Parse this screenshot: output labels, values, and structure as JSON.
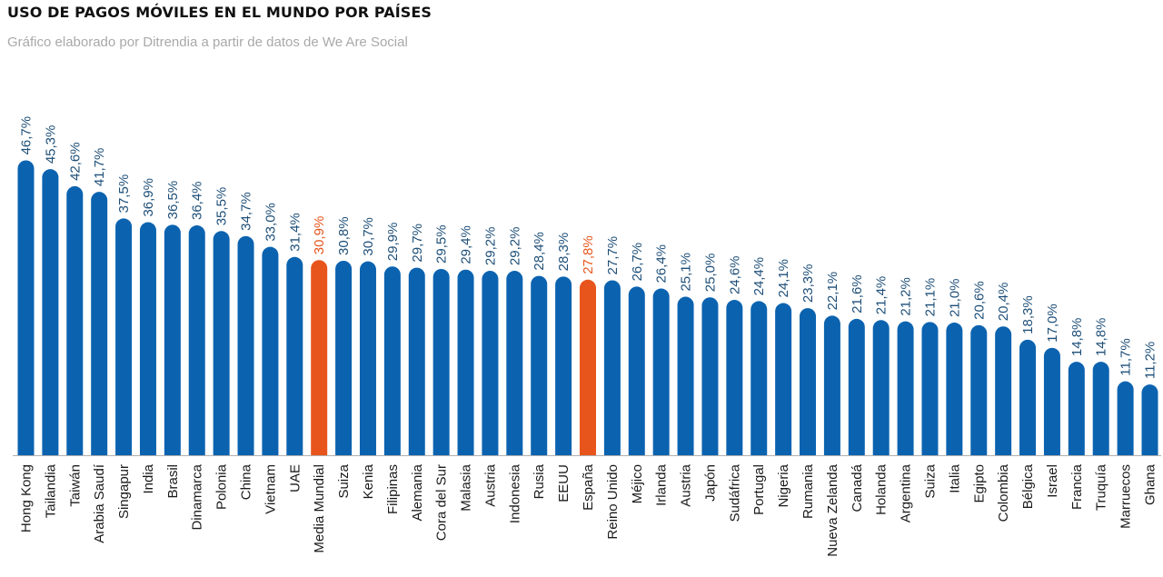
{
  "header": {
    "title": "USO DE PAGOS MÓVILES EN EL MUNDO POR PAÍSES",
    "subtitle": "Gráfico elaborado por Ditrendia a partir de datos de We Are Social"
  },
  "colors": {
    "bar": "#0b63b0",
    "highlight": "#e8551c",
    "label_default": "#1e4f78",
    "label_highlight": "#e8551c",
    "axis": "#b0b0b0"
  },
  "chart_data": {
    "type": "bar",
    "title": "USO DE PAGOS MÓVILES EN EL MUNDO POR PAÍSES",
    "subtitle": "Gráfico elaborado por Ditrendia a partir de datos de We Are Social",
    "xlabel": "",
    "ylabel": "",
    "ylim": [
      0,
      50
    ],
    "grid": false,
    "legend": "none",
    "categories": [
      "Hong Kong",
      "Tailandia",
      "Taiwán",
      "Arabia Saudí",
      "Singapur",
      "India",
      "Brasil",
      "Dinamarca",
      "Polonia",
      "China",
      "Vietnam",
      "UAE",
      "Media Mundial",
      "Suiza",
      "Kenia",
      "Filipinas",
      "Alemania",
      "Cora del Sur",
      "Malasia",
      "Austria",
      "Indonesia",
      "Rusia",
      "EEUU",
      "España",
      "Reino Unido",
      "Méjico",
      "Irlanda",
      "Austria",
      "Japón",
      "Sudáfrica",
      "Portugal",
      "Nigeria",
      "Rumania",
      "Nueva Zelanda",
      "Canadá",
      "Holanda",
      "Argentina",
      "Suiza",
      "Italia",
      "Egipto",
      "Colombia",
      "Bélgica",
      "Israel",
      "Francia",
      "Truquía",
      "Marruecos",
      "Ghana"
    ],
    "values": [
      46.7,
      45.3,
      42.6,
      41.7,
      37.5,
      36.9,
      36.5,
      36.4,
      35.5,
      34.7,
      33.0,
      31.4,
      30.9,
      30.8,
      30.7,
      29.9,
      29.7,
      29.5,
      29.4,
      29.2,
      29.2,
      28.4,
      28.3,
      27.8,
      27.7,
      26.7,
      26.4,
      25.1,
      25.0,
      24.6,
      24.4,
      24.1,
      23.3,
      22.1,
      21.6,
      21.4,
      21.2,
      21.1,
      21.0,
      20.6,
      20.4,
      18.3,
      17.0,
      14.8,
      14.8,
      11.7,
      11.2
    ],
    "value_labels": [
      "46,7%",
      "45,3%",
      "42,6%",
      "41,7%",
      "37,5%",
      "36,9%",
      "36,5%",
      "36,4%",
      "35,5%",
      "34,7%",
      "33,0%",
      "31,4%",
      "30,9%",
      "30,8%",
      "30,7%",
      "29,9%",
      "29,7%",
      "29,5%",
      "29,4%",
      "29,2%",
      "29,2%",
      "28,4%",
      "28,3%",
      "27,8%",
      "27,7%",
      "26,7%",
      "26,4%",
      "25,1%",
      "25,0%",
      "24,6%",
      "24,4%",
      "24,1%",
      "23,3%",
      "22,1%",
      "21,6%",
      "21,4%",
      "21,2%",
      "21,1%",
      "21,0%",
      "20,6%",
      "20,4%",
      "18,3%",
      "17,0%",
      "14,8%",
      "14,8%",
      "11,7%",
      "11,2%"
    ],
    "highlighted": [
      "Media Mundial",
      "España"
    ]
  }
}
